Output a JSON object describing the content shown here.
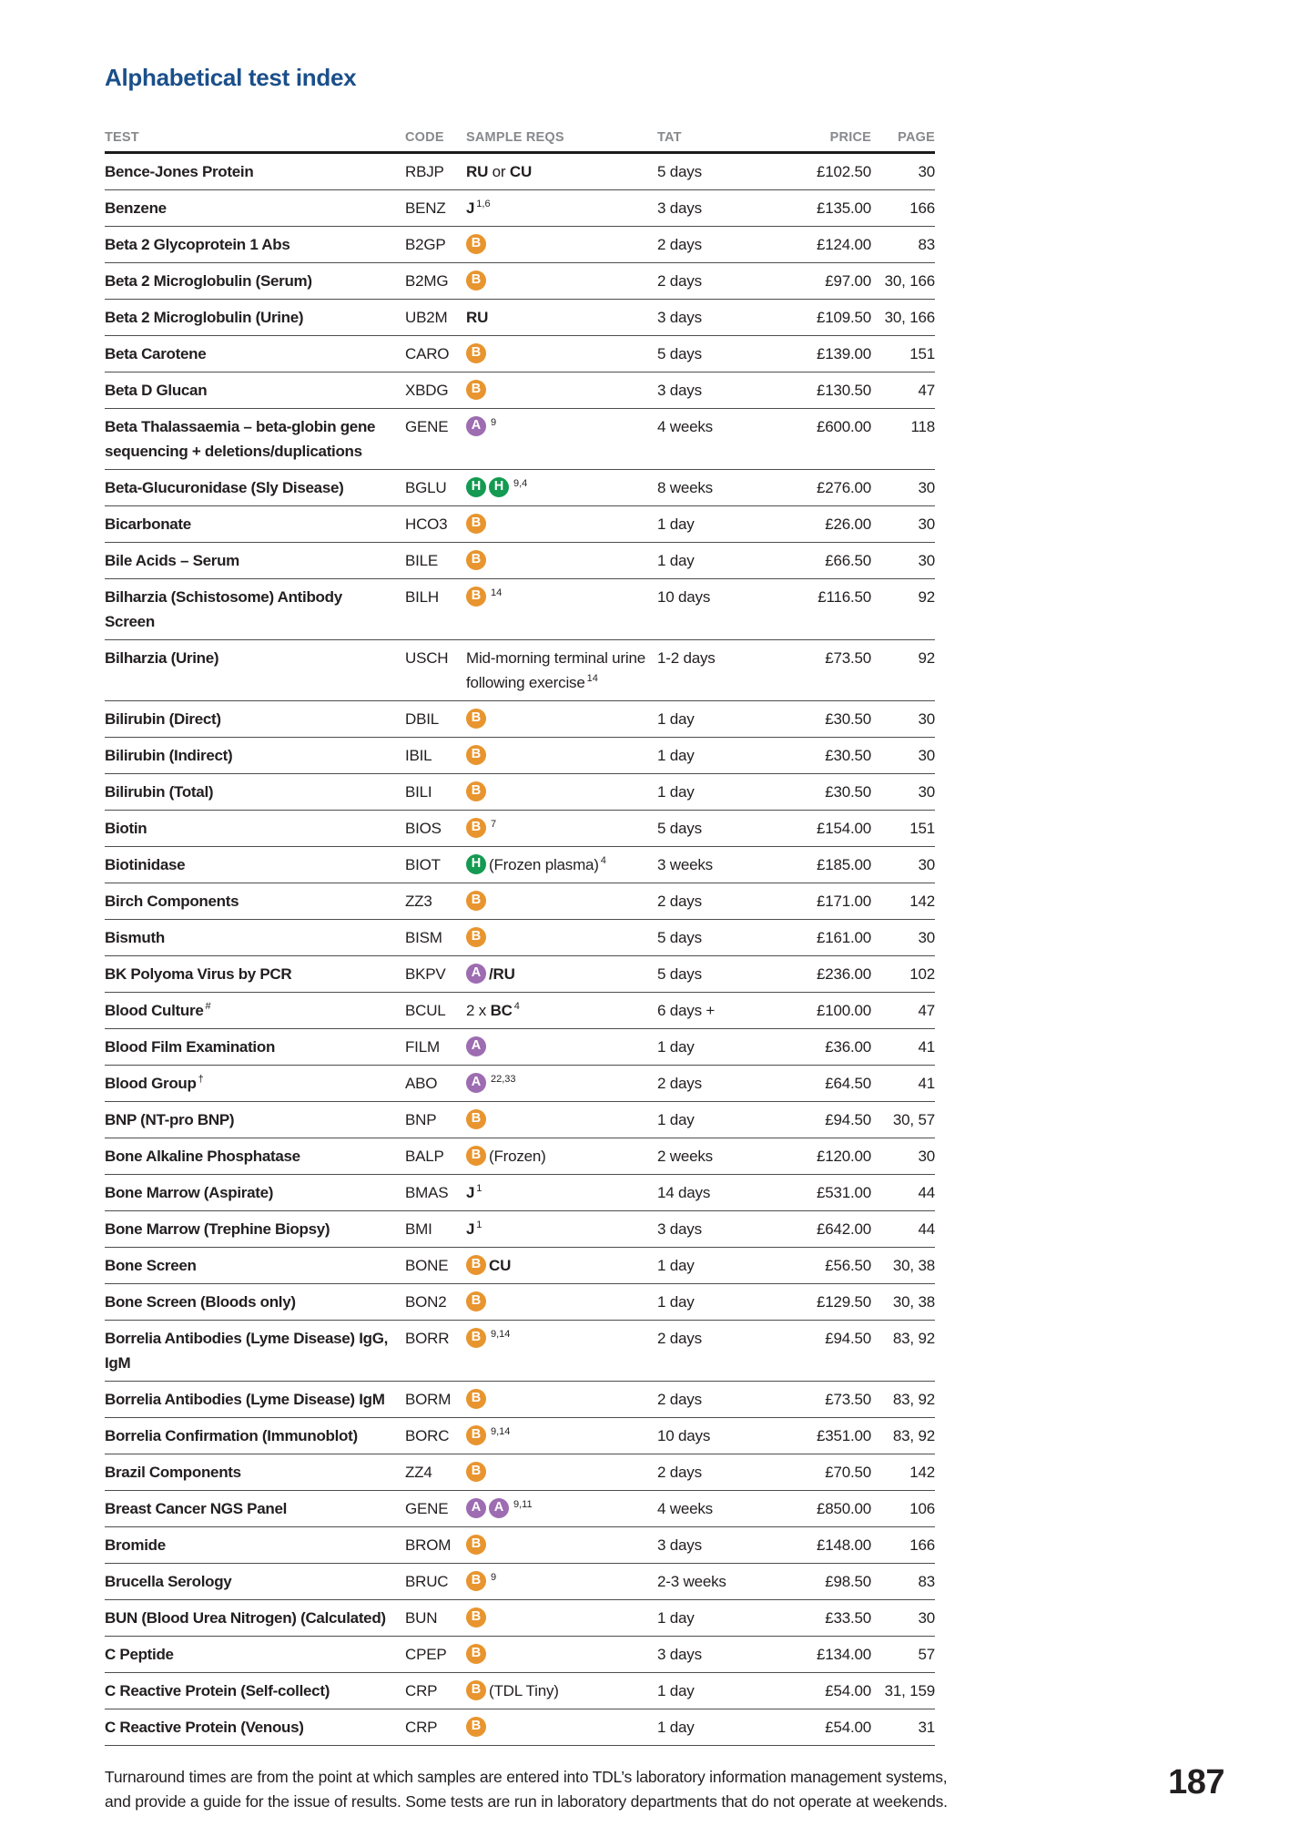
{
  "page": {
    "title": "Alphabetical test index",
    "page_number": "187",
    "footer_line1": "Turnaround times are from the point at which samples are entered into TDL’s laboratory information management systems,",
    "footer_line2": "and provide a guide for the issue of results. Some tests are run in laboratory departments that do not operate at weekends."
  },
  "colors": {
    "title_blue": "#1b4f8a",
    "header_gray": "#87898c",
    "badge_A": "#9d6cb1",
    "badge_B": "#e8952f",
    "badge_H": "#149a52"
  },
  "table": {
    "headers": [
      "TEST",
      "CODE",
      "SAMPLE REQS",
      "TAT",
      "PRICE",
      "PAGE"
    ],
    "rows": [
      {
        "test": "Bence-Jones Protein",
        "code": "RBJP",
        "sample": [
          {
            "t": "b",
            "v": "RU"
          },
          {
            "t": "n",
            "v": " or "
          },
          {
            "t": "b",
            "v": "CU"
          }
        ],
        "tat": "5 days",
        "price": "£102.50",
        "page": "30"
      },
      {
        "test": "Benzene",
        "code": "BENZ",
        "sample": [
          {
            "t": "b",
            "v": "J"
          },
          {
            "t": "s",
            "v": "1,6"
          }
        ],
        "tat": "3 days",
        "price": "£135.00",
        "page": "166"
      },
      {
        "test": "Beta 2 Glycoprotein 1 Abs",
        "code": "B2GP",
        "sample": [
          {
            "t": "badge",
            "v": "B"
          }
        ],
        "tat": "2 days",
        "price": "£124.00",
        "page": "83"
      },
      {
        "test": "Beta 2 Microglobulin (Serum)",
        "code": "B2MG",
        "sample": [
          {
            "t": "badge",
            "v": "B"
          }
        ],
        "tat": "2 days",
        "price": "£97.00",
        "page": "30, 166"
      },
      {
        "test": "Beta 2 Microglobulin (Urine)",
        "code": "UB2M",
        "sample": [
          {
            "t": "b",
            "v": "RU"
          }
        ],
        "tat": "3 days",
        "price": "£109.50",
        "page": "30, 166"
      },
      {
        "test": "Beta Carotene",
        "code": "CARO",
        "sample": [
          {
            "t": "badge",
            "v": "B"
          }
        ],
        "tat": "5 days",
        "price": "£139.00",
        "page": "151"
      },
      {
        "test": "Beta D Glucan",
        "code": "XBDG",
        "sample": [
          {
            "t": "badge",
            "v": "B"
          }
        ],
        "tat": "3 days",
        "price": "£130.50",
        "page": "47"
      },
      {
        "test": "Beta Thalassaemia – beta-globin gene sequencing + deletions/duplications",
        "code": "GENE",
        "sample": [
          {
            "t": "badge",
            "v": "A"
          },
          {
            "t": "s",
            "v": "9"
          }
        ],
        "tat": "4 weeks",
        "price": "£600.00",
        "page": "118"
      },
      {
        "test": "Beta-Glucuronidase (Sly Disease)",
        "code": "BGLU",
        "sample": [
          {
            "t": "badge",
            "v": "H"
          },
          {
            "t": "badge",
            "v": "H"
          },
          {
            "t": "s",
            "v": "9,4"
          }
        ],
        "tat": "8 weeks",
        "price": "£276.00",
        "page": "30"
      },
      {
        "test": "Bicarbonate",
        "code": "HCO3",
        "sample": [
          {
            "t": "badge",
            "v": "B"
          }
        ],
        "tat": "1 day",
        "price": "£26.00",
        "page": "30"
      },
      {
        "test": "Bile Acids – Serum",
        "code": "BILE",
        "sample": [
          {
            "t": "badge",
            "v": "B"
          }
        ],
        "tat": "1 day",
        "price": "£66.50",
        "page": "30"
      },
      {
        "test": "Bilharzia (Schistosome) Antibody Screen",
        "code": "BILH",
        "sample": [
          {
            "t": "badge",
            "v": "B"
          },
          {
            "t": "s",
            "v": "14"
          }
        ],
        "tat": "10 days",
        "price": "£116.50",
        "page": "92"
      },
      {
        "test": "Bilharzia (Urine)",
        "code": "USCH",
        "sample": [
          {
            "t": "n",
            "v": "Mid-morning terminal urine following exercise"
          },
          {
            "t": "s",
            "v": "14"
          }
        ],
        "tat": "1-2 days",
        "price": "£73.50",
        "page": "92"
      },
      {
        "test": "Bilirubin (Direct)",
        "code": "DBIL",
        "sample": [
          {
            "t": "badge",
            "v": "B"
          }
        ],
        "tat": "1 day",
        "price": "£30.50",
        "page": "30"
      },
      {
        "test": "Bilirubin (Indirect)",
        "code": "IBIL",
        "sample": [
          {
            "t": "badge",
            "v": "B"
          }
        ],
        "tat": "1 day",
        "price": "£30.50",
        "page": "30"
      },
      {
        "test": "Bilirubin (Total)",
        "code": "BILI",
        "sample": [
          {
            "t": "badge",
            "v": "B"
          }
        ],
        "tat": "1 day",
        "price": "£30.50",
        "page": "30"
      },
      {
        "test": "Biotin",
        "code": "BIOS",
        "sample": [
          {
            "t": "badge",
            "v": "B"
          },
          {
            "t": "s",
            "v": "7"
          }
        ],
        "tat": "5 days",
        "price": "£154.00",
        "page": "151"
      },
      {
        "test": "Biotinidase",
        "code": "BIOT",
        "sample": [
          {
            "t": "badge",
            "v": "H"
          },
          {
            "t": "n",
            "v": "(Frozen plasma)"
          },
          {
            "t": "s",
            "v": "4"
          }
        ],
        "tat": "3 weeks",
        "price": "£185.00",
        "page": "30"
      },
      {
        "test": "Birch Components",
        "code": "ZZ3",
        "sample": [
          {
            "t": "badge",
            "v": "B"
          }
        ],
        "tat": "2 days",
        "price": "£171.00",
        "page": "142"
      },
      {
        "test": "Bismuth",
        "code": "BISM",
        "sample": [
          {
            "t": "badge",
            "v": "B"
          }
        ],
        "tat": "5 days",
        "price": "£161.00",
        "page": "30"
      },
      {
        "test": "BK Polyoma Virus by PCR",
        "code": "BKPV",
        "sample": [
          {
            "t": "badge",
            "v": "A"
          },
          {
            "t": "b",
            "v": "/RU"
          }
        ],
        "tat": "5 days",
        "price": "£236.00",
        "page": "102"
      },
      {
        "test": "Blood Culture",
        "test_sup": "#",
        "code": "BCUL",
        "sample": [
          {
            "t": "n",
            "v": "2 x "
          },
          {
            "t": "b",
            "v": "BC"
          },
          {
            "t": "s",
            "v": "4"
          }
        ],
        "tat": "6 days +",
        "price": "£100.00",
        "page": "47"
      },
      {
        "test": "Blood Film Examination",
        "code": "FILM",
        "sample": [
          {
            "t": "badge",
            "v": "A"
          }
        ],
        "tat": "1 day",
        "price": "£36.00",
        "page": "41"
      },
      {
        "test": "Blood Group",
        "test_sup": "†",
        "code": "ABO",
        "sample": [
          {
            "t": "badge",
            "v": "A"
          },
          {
            "t": "s",
            "v": "22,33"
          }
        ],
        "tat": "2 days",
        "price": "£64.50",
        "page": "41"
      },
      {
        "test": "BNP (NT-pro BNP)",
        "code": "BNP",
        "sample": [
          {
            "t": "badge",
            "v": "B"
          }
        ],
        "tat": "1 day",
        "price": "£94.50",
        "page": "30, 57"
      },
      {
        "test": "Bone Alkaline Phosphatase",
        "code": "BALP",
        "sample": [
          {
            "t": "badge",
            "v": "B"
          },
          {
            "t": "n",
            "v": "(Frozen)"
          }
        ],
        "tat": "2 weeks",
        "price": "£120.00",
        "page": "30"
      },
      {
        "test": "Bone Marrow (Aspirate)",
        "code": "BMAS",
        "sample": [
          {
            "t": "b",
            "v": "J"
          },
          {
            "t": "s",
            "v": "1"
          }
        ],
        "tat": "14 days",
        "price": "£531.00",
        "page": "44"
      },
      {
        "test": "Bone Marrow (Trephine Biopsy)",
        "code": "BMI",
        "sample": [
          {
            "t": "b",
            "v": "J"
          },
          {
            "t": "s",
            "v": "1"
          }
        ],
        "tat": "3 days",
        "price": "£642.00",
        "page": "44"
      },
      {
        "test": "Bone Screen",
        "code": "BONE",
        "sample": [
          {
            "t": "badge",
            "v": "B"
          },
          {
            "t": "b",
            "v": "CU"
          }
        ],
        "tat": "1 day",
        "price": "£56.50",
        "page": "30, 38"
      },
      {
        "test": "Bone Screen (Bloods only)",
        "code": "BON2",
        "sample": [
          {
            "t": "badge",
            "v": "B"
          }
        ],
        "tat": "1 day",
        "price": "£129.50",
        "page": "30, 38"
      },
      {
        "test": "Borrelia Antibodies (Lyme Disease) IgG, IgM",
        "code": "BORR",
        "sample": [
          {
            "t": "badge",
            "v": "B"
          },
          {
            "t": "s",
            "v": "9,14"
          }
        ],
        "tat": "2 days",
        "price": "£94.50",
        "page": "83, 92"
      },
      {
        "test": "Borrelia Antibodies (Lyme Disease) IgM",
        "code": "BORM",
        "sample": [
          {
            "t": "badge",
            "v": "B"
          }
        ],
        "tat": "2 days",
        "price": "£73.50",
        "page": "83, 92"
      },
      {
        "test": "Borrelia Confirmation (Immunoblot)",
        "code": "BORC",
        "sample": [
          {
            "t": "badge",
            "v": "B"
          },
          {
            "t": "s",
            "v": "9,14"
          }
        ],
        "tat": "10 days",
        "price": "£351.00",
        "page": "83, 92"
      },
      {
        "test": "Brazil Components",
        "code": "ZZ4",
        "sample": [
          {
            "t": "badge",
            "v": "B"
          }
        ],
        "tat": "2 days",
        "price": "£70.50",
        "page": "142"
      },
      {
        "test": "Breast Cancer NGS Panel",
        "code": "GENE",
        "sample": [
          {
            "t": "badge",
            "v": "A"
          },
          {
            "t": "badge",
            "v": "A"
          },
          {
            "t": "s",
            "v": "9,11"
          }
        ],
        "tat": "4 weeks",
        "price": "£850.00",
        "page": "106"
      },
      {
        "test": "Bromide",
        "code": "BROM",
        "sample": [
          {
            "t": "badge",
            "v": "B"
          }
        ],
        "tat": "3 days",
        "price": "£148.00",
        "page": "166"
      },
      {
        "test": "Brucella Serology",
        "code": "BRUC",
        "sample": [
          {
            "t": "badge",
            "v": "B"
          },
          {
            "t": "s",
            "v": "9"
          }
        ],
        "tat": "2-3 weeks",
        "price": "£98.50",
        "page": "83"
      },
      {
        "test": "BUN (Blood Urea Nitrogen) (Calculated)",
        "code": "BUN",
        "sample": [
          {
            "t": "badge",
            "v": "B"
          }
        ],
        "tat": "1 day",
        "price": "£33.50",
        "page": "30"
      },
      {
        "test": "C Peptide",
        "code": "CPEP",
        "sample": [
          {
            "t": "badge",
            "v": "B"
          }
        ],
        "tat": "3 days",
        "price": "£134.00",
        "page": "57"
      },
      {
        "test": "C Reactive Protein (Self-collect)",
        "code": "CRP",
        "sample": [
          {
            "t": "badge",
            "v": "B"
          },
          {
            "t": "n",
            "v": "(TDL Tiny)"
          }
        ],
        "tat": "1 day",
        "price": "£54.00",
        "page": "31, 159"
      },
      {
        "test": "C Reactive Protein (Venous)",
        "code": "CRP",
        "sample": [
          {
            "t": "badge",
            "v": "B"
          }
        ],
        "tat": "1 day",
        "price": "£54.00",
        "page": "31"
      }
    ]
  }
}
